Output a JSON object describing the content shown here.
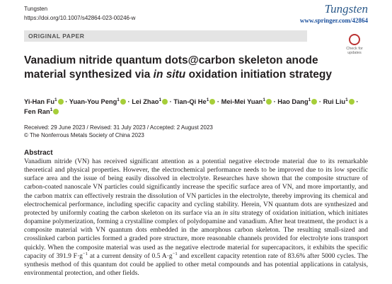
{
  "header": {
    "journal_small": "Tungsten",
    "doi": "https://doi.org/10.1007/s42864-023-00246-w",
    "journal_logo": "Tungsten",
    "url": "www.springer.com/42864"
  },
  "section_label": "ORIGINAL PAPER",
  "badge": "Check for updates",
  "title": [
    {
      "text": "Vanadium nitride quantum dots@carbon skeleton anode material synthesized via "
    },
    {
      "text": "in situ",
      "italic": true
    },
    {
      "text": " oxidation initiation strategy"
    }
  ],
  "separator": "·",
  "authors": [
    {
      "name": "Yi-Han Fu",
      "affil": "1"
    },
    {
      "name": "Yuan-You Peng",
      "affil": "1"
    },
    {
      "name": "Lei Zhao",
      "affil": "1"
    },
    {
      "name": "Tian-Qi He",
      "affil": "1"
    },
    {
      "name": "Mei-Mei Yuan",
      "affil": "1"
    },
    {
      "name": "Hao Dang",
      "affil": "1"
    },
    {
      "name": "Rui Liu",
      "affil": "1"
    },
    {
      "name": "Fen Ran",
      "affil": "1"
    }
  ],
  "dates": "Received: 29 June 2023 / Revised: 31 July 2023 / Accepted: 2 August 2023",
  "copyright": "© The Nonferrous Metals Society of China 2023",
  "abstract": {
    "heading": "Abstract",
    "body": [
      {
        "text": "Vanadium nitride (VN) has received significant attention as a potential negative electrode material due to its remarkable theoretical and physical properties. However, the electrochemical performance needs to be improved due to its low specific surface area and the issue of being easily dissolved in electrolyte. Researches have shown that the composite structure of carbon-coated nanoscale VN particles could significantly increase the specific surface area of VN, and more importantly, and the carbon matrix can effectively restrain the dissolution of VN particles in the electrolyte, thereby improving its chemical and electrochemical performance, including specific capacity and cycling stability. Herein, VN quantum dots are synthesized and protected by uniformly coating the carbon skeleton on its surface via an "
      },
      {
        "text": "in situ",
        "italic": true
      },
      {
        "text": " strategy of oxidation initiation, which initiates dopamine polymerization, forming a crystalline complex of polydopamine and vanadium. After heat treatment, the product is a composite material with VN quantum dots embedded in the amorphous carbon skeleton. The resulting small-sized and crosslinked carbon particles formed a graded pore structure, more reasonable channels provided for electrolyte ions transport quickly. When the composite material was used as the negative electrode material for supercapacitors, it exhibits the specific capacity of 391.9 F·g"
      },
      {
        "text": "−1",
        "sup": true
      },
      {
        "text": " at a current density of 0.5 A·g"
      },
      {
        "text": "−1",
        "sup": true
      },
      {
        "text": " and excellent capacity retention rate of 83.6% after 5000 cycles. The synthesis method of this quantum dot could be applied to other metal compounds and has potential applications in catalysis, environmental protection, and other fields."
      }
    ]
  }
}
